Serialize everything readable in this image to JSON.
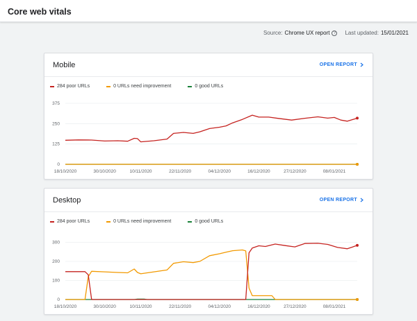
{
  "header": {
    "title": "Core web vitals"
  },
  "meta": {
    "source_label": "Source:",
    "source_value": "Chrome UX report",
    "updated_label": "Last updated:",
    "updated_value": "15/01/2021",
    "help_glyph": "?"
  },
  "colors": {
    "poor": "#c5221f",
    "needs_improvement": "#f29900",
    "good": "#188038",
    "accent": "#1a73e8"
  },
  "cards": [
    {
      "title": "Mobile",
      "open_report_label": "OPEN REPORT",
      "legend": [
        "284 poor URLs",
        "0 URLs need improvement",
        "0 good URLs"
      ]
    },
    {
      "title": "Desktop",
      "open_report_label": "OPEN REPORT",
      "legend": [
        "284 poor URLs",
        "0 URLs need improvement",
        "0 good URLs"
      ]
    }
  ],
  "chart_data": [
    {
      "type": "line",
      "title": "Mobile",
      "xticks": [
        "18/10/2020",
        "30/10/2020",
        "10/11/2020",
        "22/11/2020",
        "04/12/2020",
        "16/12/2020",
        "27/12/2020",
        "08/01/2021"
      ],
      "xlim": [
        "2020-10-18",
        "2021-01-15"
      ],
      "yticks": [
        0,
        125,
        250,
        375
      ],
      "ylim": [
        0,
        375
      ],
      "grid": true,
      "legend_position": "top-left",
      "series": [
        {
          "name": "284 poor URLs",
          "x": [
            "2020-10-18",
            "2020-10-22",
            "2020-10-26",
            "2020-10-30",
            "2020-11-03",
            "2020-11-06",
            "2020-11-08",
            "2020-11-09",
            "2020-11-10",
            "2020-11-14",
            "2020-11-18",
            "2020-11-20",
            "2020-11-23",
            "2020-11-26",
            "2020-11-28",
            "2020-12-01",
            "2020-12-04",
            "2020-12-06",
            "2020-12-08",
            "2020-12-11",
            "2020-12-14",
            "2020-12-16",
            "2020-12-19",
            "2020-12-22",
            "2020-12-26",
            "2020-12-30",
            "2021-01-03",
            "2021-01-06",
            "2021-01-08",
            "2021-01-10",
            "2021-01-12",
            "2021-01-15"
          ],
          "values": [
            148,
            150,
            149,
            143,
            145,
            142,
            160,
            158,
            138,
            145,
            155,
            190,
            196,
            190,
            200,
            220,
            228,
            236,
            255,
            276,
            302,
            290,
            290,
            282,
            272,
            283,
            292,
            284,
            288,
            272,
            265,
            284
          ]
        },
        {
          "name": "0 URLs need improvement",
          "x": [
            "2020-10-18",
            "2021-01-15"
          ],
          "values": [
            0,
            0
          ]
        },
        {
          "name": "0 good URLs",
          "x": [
            "2020-10-18",
            "2021-01-15"
          ],
          "values": [
            0,
            0
          ]
        }
      ]
    },
    {
      "type": "line",
      "title": "Desktop",
      "xticks": [
        "18/10/2020",
        "30/10/2020",
        "10/11/2020",
        "22/11/2020",
        "04/12/2020",
        "16/12/2020",
        "27/12/2020",
        "08/01/2021"
      ],
      "xlim": [
        "2020-10-18",
        "2021-01-15"
      ],
      "yticks": [
        0,
        100,
        200,
        300
      ],
      "ylim": [
        0,
        320
      ],
      "grid": true,
      "legend_position": "top-left",
      "series": [
        {
          "name": "284 poor URLs",
          "x": [
            "2020-10-18",
            "2020-10-24",
            "2020-10-25",
            "2020-10-26",
            "2020-12-12",
            "2020-12-13",
            "2020-12-14",
            "2020-12-16",
            "2020-12-18",
            "2020-12-21",
            "2020-12-24",
            "2020-12-27",
            "2020-12-30",
            "2021-01-03",
            "2021-01-06",
            "2021-01-09",
            "2021-01-12",
            "2021-01-15"
          ],
          "values": [
            146,
            146,
            130,
            0,
            0,
            245,
            270,
            282,
            278,
            291,
            283,
            276,
            294,
            295,
            289,
            273,
            266,
            284
          ]
        },
        {
          "name": "0 URLs need improvement",
          "x": [
            "2020-10-18",
            "2020-10-24",
            "2020-10-25",
            "2020-10-26",
            "2020-10-30",
            "2020-11-03",
            "2020-11-06",
            "2020-11-08",
            "2020-11-09",
            "2020-11-10",
            "2020-11-14",
            "2020-11-18",
            "2020-11-20",
            "2020-11-23",
            "2020-11-26",
            "2020-11-28",
            "2020-12-01",
            "2020-12-04",
            "2020-12-06",
            "2020-12-08",
            "2020-12-11",
            "2020-12-12",
            "2020-12-13",
            "2020-12-14",
            "2020-12-20",
            "2020-12-21",
            "2021-01-15"
          ],
          "values": [
            0,
            0,
            120,
            148,
            145,
            142,
            140,
            160,
            142,
            135,
            145,
            155,
            190,
            198,
            194,
            200,
            230,
            240,
            248,
            256,
            260,
            255,
            60,
            20,
            20,
            0,
            0
          ]
        },
        {
          "name": "0 good URLs",
          "x": [
            "2020-10-18",
            "2020-11-08",
            "2020-11-09",
            "2020-11-11",
            "2020-11-12",
            "2020-12-13",
            "2020-12-14",
            "2020-12-21",
            "2020-12-22",
            "2021-01-15"
          ],
          "values": [
            0,
            0,
            2,
            2,
            0,
            0,
            0,
            0,
            0,
            0
          ]
        }
      ]
    }
  ]
}
